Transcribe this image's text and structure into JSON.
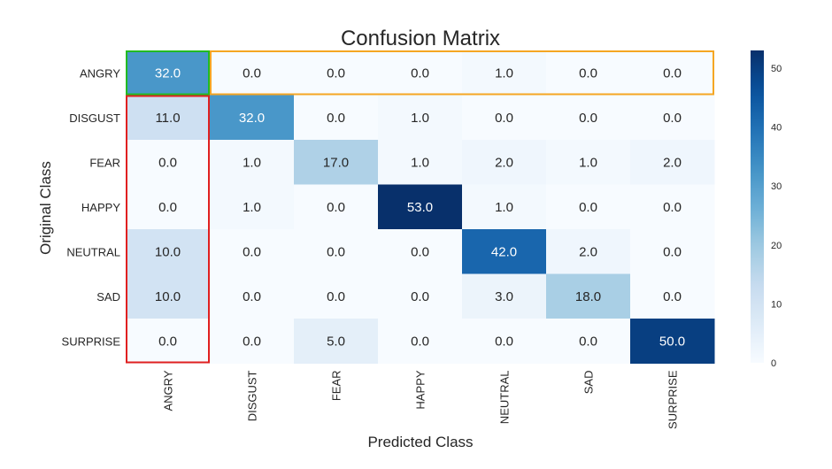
{
  "chart_data": {
    "type": "heatmap",
    "title": "Confusion Matrix",
    "xlabel": "Predicted Class",
    "ylabel": "Original Class",
    "rows": [
      "ANGRY",
      "DISGUST",
      "FEAR",
      "HAPPY",
      "NEUTRAL",
      "SAD",
      "SURPRISE"
    ],
    "columns": [
      "ANGRY",
      "DISGUST",
      "FEAR",
      "HAPPY",
      "NEUTRAL",
      "SAD",
      "SURPRISE"
    ],
    "values": [
      [
        32.0,
        0.0,
        0.0,
        0.0,
        1.0,
        0.0,
        0.0
      ],
      [
        11.0,
        32.0,
        0.0,
        1.0,
        0.0,
        0.0,
        0.0
      ],
      [
        0.0,
        1.0,
        17.0,
        1.0,
        2.0,
        1.0,
        2.0
      ],
      [
        0.0,
        1.0,
        0.0,
        53.0,
        1.0,
        0.0,
        0.0
      ],
      [
        10.0,
        0.0,
        0.0,
        0.0,
        42.0,
        2.0,
        0.0
      ],
      [
        10.0,
        0.0,
        0.0,
        0.0,
        3.0,
        18.0,
        0.0
      ],
      [
        0.0,
        0.0,
        5.0,
        0.0,
        0.0,
        0.0,
        50.0
      ]
    ],
    "value_format": "one decimal",
    "colormap": "Blues",
    "color_range": [
      0,
      53
    ],
    "colorbar_ticks": [
      0,
      10,
      20,
      30,
      40,
      50
    ],
    "highlights": [
      {
        "color": "#22bb22",
        "rows": [
          0,
          0
        ],
        "columns": [
          0,
          0
        ]
      },
      {
        "color": "#f5a623",
        "rows": [
          0,
          0
        ],
        "columns": [
          1,
          6
        ]
      },
      {
        "color": "#e02020",
        "rows": [
          1,
          6
        ],
        "columns": [
          0,
          0
        ]
      }
    ]
  }
}
